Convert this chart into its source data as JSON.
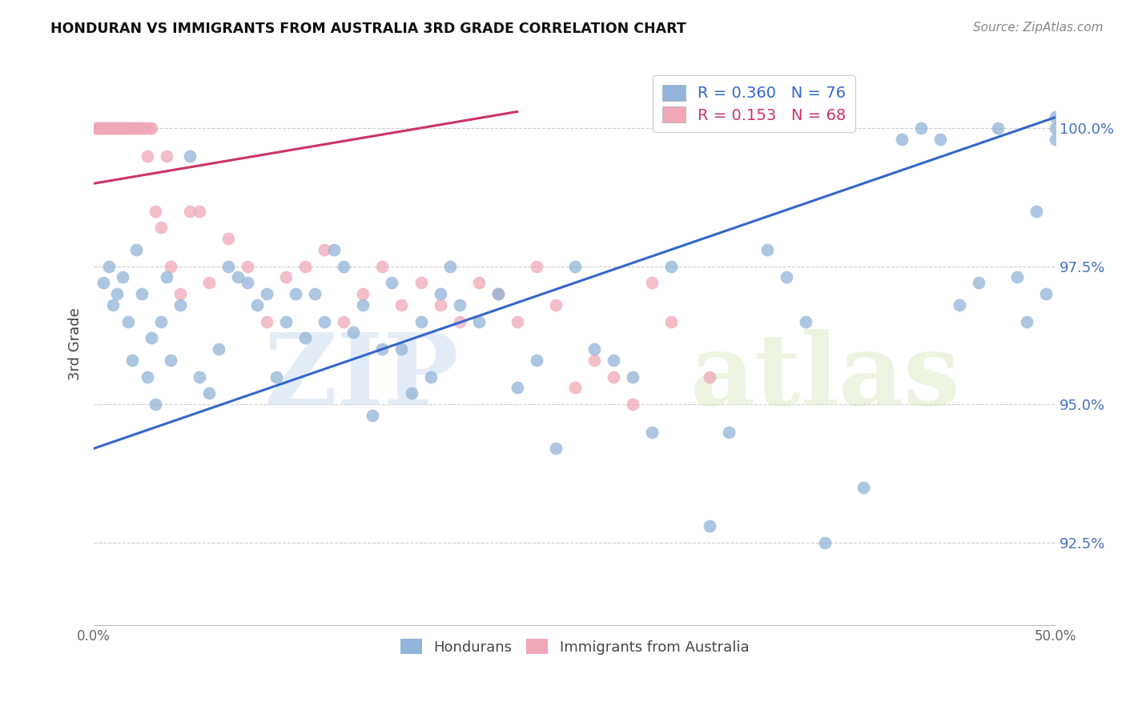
{
  "title": "HONDURAN VS IMMIGRANTS FROM AUSTRALIA 3RD GRADE CORRELATION CHART",
  "source": "Source: ZipAtlas.com",
  "ylabel": "3rd Grade",
  "ytick_labels": [
    "92.5%",
    "95.0%",
    "97.5%",
    "100.0%"
  ],
  "ytick_values": [
    92.5,
    95.0,
    97.5,
    100.0
  ],
  "xmin": 0.0,
  "xmax": 50.0,
  "ymin": 91.0,
  "ymax": 101.2,
  "blue_R": 0.36,
  "blue_N": 76,
  "pink_R": 0.153,
  "pink_N": 68,
  "legend_label_blue": "Hondurans",
  "legend_label_pink": "Immigrants from Australia",
  "blue_color": "#92b4d8",
  "pink_color": "#f0a8b8",
  "blue_line_color": "#3366cc",
  "pink_line_color": "#cc3366",
  "watermark_zip": "ZIP",
  "watermark_atlas": "atlas",
  "blue_line_x": [
    0.0,
    50.0
  ],
  "blue_line_y": [
    94.2,
    100.2
  ],
  "pink_line_x": [
    0.0,
    22.0
  ],
  "pink_line_y": [
    99.0,
    100.3
  ],
  "blue_scatter_x": [
    0.5,
    0.8,
    1.0,
    1.2,
    1.5,
    1.8,
    2.0,
    2.2,
    2.5,
    2.8,
    3.0,
    3.2,
    3.5,
    3.8,
    4.0,
    4.5,
    5.0,
    5.5,
    6.0,
    6.5,
    7.0,
    7.5,
    8.0,
    8.5,
    9.0,
    9.5,
    10.0,
    10.5,
    11.0,
    11.5,
    12.0,
    12.5,
    13.0,
    13.5,
    14.0,
    14.5,
    15.0,
    15.5,
    16.0,
    16.5,
    17.0,
    17.5,
    18.0,
    18.5,
    19.0,
    20.0,
    21.0,
    22.0,
    23.0,
    24.0,
    25.0,
    26.0,
    27.0,
    28.0,
    29.0,
    30.0,
    32.0,
    33.0,
    35.0,
    36.0,
    37.0,
    38.0,
    40.0,
    42.0,
    43.0,
    44.0,
    45.0,
    46.0,
    47.0,
    48.0,
    48.5,
    49.0,
    49.5,
    50.0,
    50.0,
    50.0
  ],
  "blue_scatter_y": [
    97.2,
    97.5,
    96.8,
    97.0,
    97.3,
    96.5,
    95.8,
    97.8,
    97.0,
    95.5,
    96.2,
    95.0,
    96.5,
    97.3,
    95.8,
    96.8,
    99.5,
    95.5,
    95.2,
    96.0,
    97.5,
    97.3,
    97.2,
    96.8,
    97.0,
    95.5,
    96.5,
    97.0,
    96.2,
    97.0,
    96.5,
    97.8,
    97.5,
    96.3,
    96.8,
    94.8,
    96.0,
    97.2,
    96.0,
    95.2,
    96.5,
    95.5,
    97.0,
    97.5,
    96.8,
    96.5,
    97.0,
    95.3,
    95.8,
    94.2,
    97.5,
    96.0,
    95.8,
    95.5,
    94.5,
    97.5,
    92.8,
    94.5,
    97.8,
    97.3,
    96.5,
    92.5,
    93.5,
    99.8,
    100.0,
    99.8,
    96.8,
    97.2,
    100.0,
    97.3,
    96.5,
    98.5,
    97.0,
    100.2,
    99.8,
    100.0
  ],
  "pink_scatter_x": [
    0.1,
    0.2,
    0.3,
    0.4,
    0.5,
    0.5,
    0.5,
    0.6,
    0.7,
    0.8,
    0.8,
    0.9,
    1.0,
    1.0,
    1.1,
    1.2,
    1.3,
    1.4,
    1.5,
    1.5,
    1.6,
    1.7,
    1.8,
    1.9,
    2.0,
    2.1,
    2.2,
    2.3,
    2.4,
    2.5,
    2.6,
    2.7,
    2.8,
    2.9,
    3.0,
    3.2,
    3.5,
    3.8,
    4.0,
    4.5,
    5.0,
    5.5,
    6.0,
    7.0,
    8.0,
    9.0,
    10.0,
    11.0,
    12.0,
    13.0,
    14.0,
    15.0,
    16.0,
    17.0,
    18.0,
    19.0,
    20.0,
    21.0,
    22.0,
    23.0,
    24.0,
    25.0,
    26.0,
    27.0,
    28.0,
    29.0,
    30.0,
    32.0
  ],
  "pink_scatter_y": [
    100.0,
    100.0,
    100.0,
    100.0,
    100.0,
    100.0,
    100.0,
    100.0,
    100.0,
    100.0,
    100.0,
    100.0,
    100.0,
    100.0,
    100.0,
    100.0,
    100.0,
    100.0,
    100.0,
    100.0,
    100.0,
    100.0,
    100.0,
    100.0,
    100.0,
    100.0,
    100.0,
    100.0,
    100.0,
    100.0,
    100.0,
    100.0,
    99.5,
    100.0,
    100.0,
    98.5,
    98.2,
    99.5,
    97.5,
    97.0,
    98.5,
    98.5,
    97.2,
    98.0,
    97.5,
    96.5,
    97.3,
    97.5,
    97.8,
    96.5,
    97.0,
    97.5,
    96.8,
    97.2,
    96.8,
    96.5,
    97.2,
    97.0,
    96.5,
    97.5,
    96.8,
    95.3,
    95.8,
    95.5,
    95.0,
    97.2,
    96.5,
    95.5
  ]
}
